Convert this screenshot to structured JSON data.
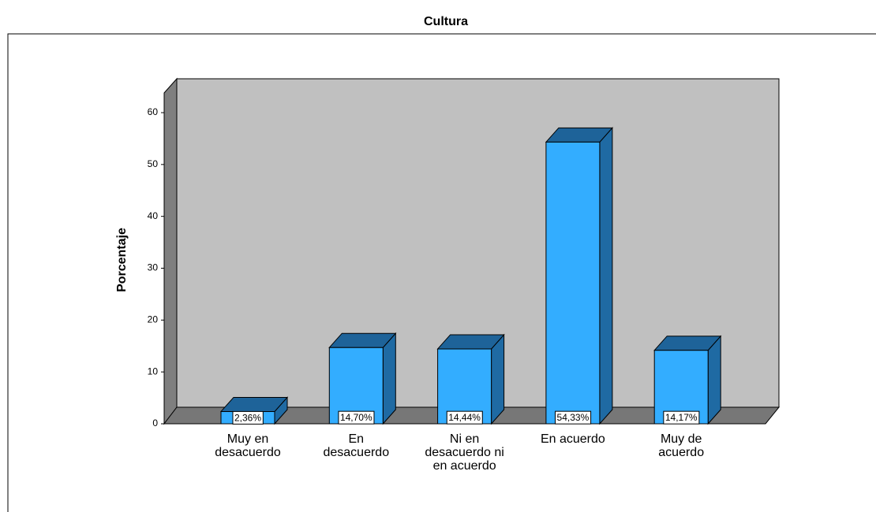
{
  "chart_data": {
    "type": "bar3d",
    "title": "Cultura",
    "ylabel": "Porcentaje",
    "categories": [
      "Muy en desacuerdo",
      "En desacuerdo",
      "Ni en desacuerdo ni en acuerdo",
      "En acuerdo",
      "Muy de acuerdo"
    ],
    "values": [
      2.36,
      14.7,
      14.44,
      54.33,
      14.17
    ],
    "value_labels": [
      "2,36%",
      "14,70%",
      "14,44%",
      "54,33%",
      "14,17%"
    ],
    "color": "#33adff",
    "ylim": [
      0,
      63.8
    ],
    "yticks": [
      0,
      10,
      20,
      30,
      40,
      50,
      60
    ]
  }
}
